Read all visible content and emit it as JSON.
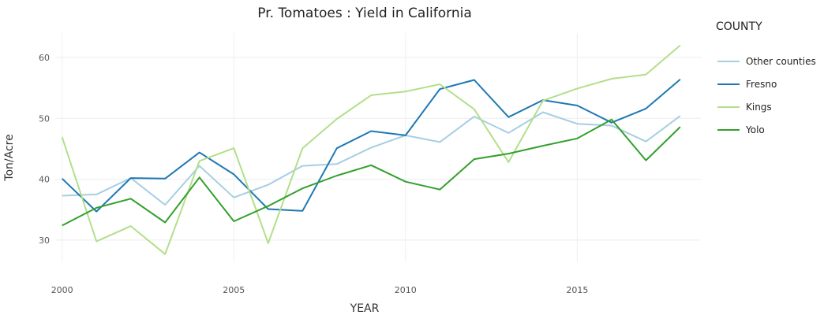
{
  "chart_data": {
    "type": "line",
    "title": "Pr. Tomatoes : Yield in California",
    "xlabel": "YEAR",
    "ylabel": "Ton/Acre",
    "xlim": [
      1999.8,
      2018.6
    ],
    "ylim": [
      26.5,
      64
    ],
    "x_ticks": [
      2000,
      2005,
      2010,
      2015
    ],
    "y_ticks": [
      30,
      40,
      50,
      60
    ],
    "grid": true,
    "legend": {
      "title": "COUNTY",
      "placement": "right"
    },
    "x": [
      2000,
      2001,
      2002,
      2003,
      2004,
      2005,
      2006,
      2007,
      2008,
      2009,
      2010,
      2011,
      2012,
      2013,
      2014,
      2015,
      2016,
      2017,
      2018
    ],
    "series": [
      {
        "name": "Other counties",
        "color": "#a6cee3",
        "values": [
          37.3,
          37.5,
          40.2,
          35.8,
          42.2,
          37.0,
          39.1,
          42.2,
          42.5,
          45.2,
          47.2,
          46.1,
          50.3,
          47.6,
          51.0,
          49.1,
          48.8,
          46.2,
          50.4
        ]
      },
      {
        "name": "Fresno",
        "color": "#1f78b4",
        "values": [
          40.1,
          34.7,
          40.2,
          40.1,
          44.4,
          40.8,
          35.1,
          34.8,
          45.1,
          47.9,
          47.2,
          54.8,
          56.3,
          50.2,
          53.0,
          52.1,
          49.3,
          51.6,
          56.4
        ]
      },
      {
        "name": "Kings",
        "color": "#b2df8a",
        "values": [
          46.9,
          29.8,
          32.3,
          27.7,
          43.0,
          45.1,
          29.5,
          45.1,
          49.9,
          53.8,
          54.4,
          55.6,
          51.5,
          42.8,
          52.9,
          54.9,
          56.5,
          57.2,
          62.0
        ]
      },
      {
        "name": "Yolo",
        "color": "#33a02c",
        "values": [
          32.4,
          35.3,
          36.8,
          32.9,
          40.3,
          33.1,
          35.6,
          38.5,
          40.6,
          42.3,
          39.6,
          38.3,
          43.3,
          44.2,
          45.5,
          46.7,
          49.8,
          43.1,
          48.6
        ]
      }
    ]
  }
}
